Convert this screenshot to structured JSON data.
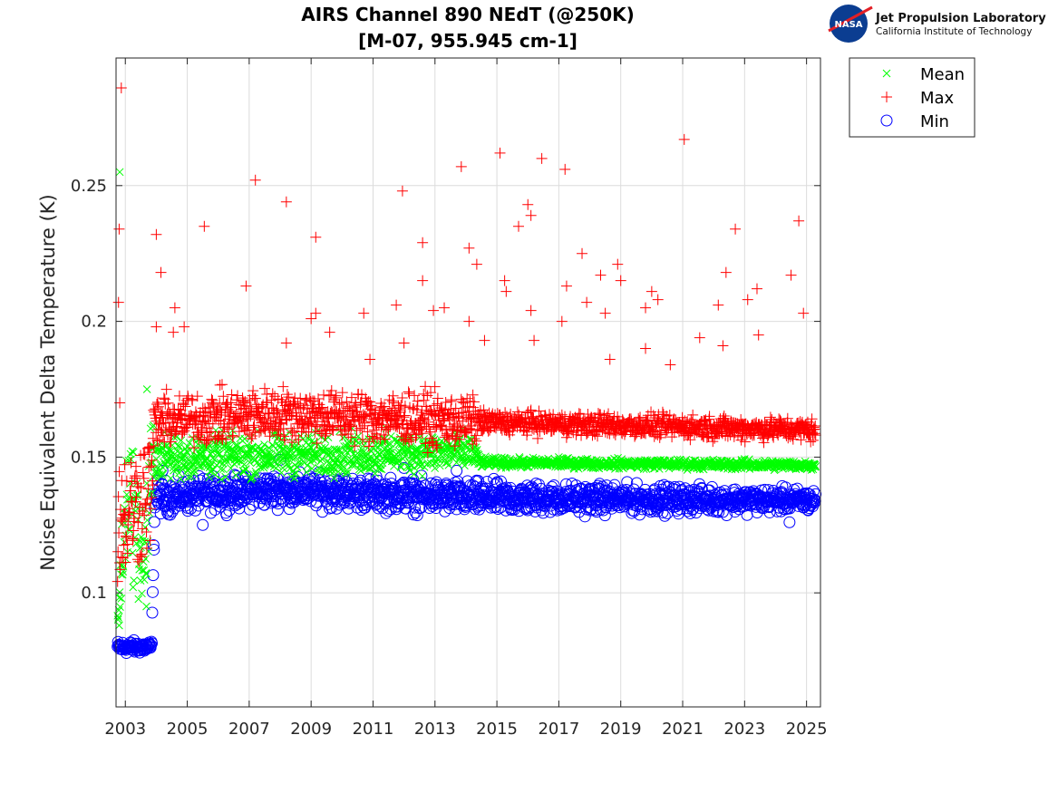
{
  "logo": {
    "title": "Jet Propulsion Laboratory",
    "subtitle": "California Institute of Technology",
    "badge": "NASA"
  },
  "chart_data": {
    "type": "scatter",
    "title": [
      "AIRS Channel 890 NEdT (@250K)",
      "[M-07, 955.945 cm-1]"
    ],
    "xlabel": "",
    "ylabel": "Noise Equivalent Delta Temperature (K)",
    "xlim": [
      2002.7,
      2025.45
    ],
    "ylim": [
      0.058,
      0.297
    ],
    "x_ticks": [
      2003,
      2005,
      2007,
      2009,
      2011,
      2013,
      2015,
      2017,
      2019,
      2021,
      2023,
      2025
    ],
    "y_ticks": [
      0.1,
      0.15,
      0.2,
      0.25
    ],
    "y_tick_labels": [
      "0.1",
      "0.15",
      "0.2",
      "0.25"
    ],
    "grid": true,
    "legend_position": "outside top-right",
    "series": [
      {
        "name": "Mean",
        "marker": "x",
        "color": "#00ff00",
        "baseline": [
          [
            2002.75,
            0.09
          ],
          [
            2003.1,
            0.14
          ],
          [
            2003.6,
            0.11
          ],
          [
            2003.9,
            0.15
          ],
          [
            2014.2,
            0.152
          ],
          [
            2014.5,
            0.148
          ],
          [
            2025.3,
            0.147
          ]
        ],
        "spread": [
          [
            2002.75,
            0.004
          ],
          [
            2003.0,
            0.02
          ],
          [
            2003.85,
            0.02
          ],
          [
            2003.95,
            0.007
          ],
          [
            2014.2,
            0.006
          ],
          [
            2014.5,
            0.0015
          ],
          [
            2025.3,
            0.0015
          ]
        ],
        "outliers": [
          [
            2002.82,
            0.255
          ],
          [
            2003.7,
            0.175
          ],
          [
            2002.8,
            0.088
          ],
          [
            2003.68,
            0.095
          ],
          [
            2017.0,
            0.15
          ],
          [
            2022.9,
            0.149
          ]
        ]
      },
      {
        "name": "Max",
        "marker": "+",
        "color": "#ff0000",
        "baseline": [
          [
            2002.75,
            0.125
          ],
          [
            2003.85,
            0.14
          ],
          [
            2003.95,
            0.163
          ],
          [
            2008.0,
            0.166
          ],
          [
            2014.2,
            0.163
          ],
          [
            2025.3,
            0.16
          ]
        ],
        "spread": [
          [
            2002.75,
            0.02
          ],
          [
            2003.85,
            0.02
          ],
          [
            2003.95,
            0.008
          ],
          [
            2014.2,
            0.008
          ],
          [
            2014.5,
            0.0035
          ],
          [
            2025.3,
            0.0035
          ]
        ],
        "outliers": [
          [
            2002.87,
            0.286
          ],
          [
            2002.8,
            0.234
          ],
          [
            2002.78,
            0.207
          ],
          [
            2002.82,
            0.17
          ],
          [
            2004.0,
            0.232
          ],
          [
            2004.15,
            0.218
          ],
          [
            2004.0,
            0.198
          ],
          [
            2004.6,
            0.205
          ],
          [
            2004.55,
            0.196
          ],
          [
            2004.9,
            0.198
          ],
          [
            2005.55,
            0.235
          ],
          [
            2007.2,
            0.252
          ],
          [
            2008.2,
            0.244
          ],
          [
            2006.9,
            0.213
          ],
          [
            2009.15,
            0.231
          ],
          [
            2009.0,
            0.201
          ],
          [
            2009.15,
            0.203
          ],
          [
            2009.6,
            0.196
          ],
          [
            2010.7,
            0.203
          ],
          [
            2011.95,
            0.248
          ],
          [
            2011.75,
            0.206
          ],
          [
            2012.6,
            0.229
          ],
          [
            2012.6,
            0.215
          ],
          [
            2012.0,
            0.192
          ],
          [
            2012.95,
            0.204
          ],
          [
            2013.3,
            0.205
          ],
          [
            2013.85,
            0.257
          ],
          [
            2014.1,
            0.227
          ],
          [
            2014.35,
            0.221
          ],
          [
            2014.1,
            0.2
          ],
          [
            2014.6,
            0.193
          ],
          [
            2015.1,
            0.262
          ],
          [
            2015.25,
            0.215
          ],
          [
            2015.3,
            0.211
          ],
          [
            2015.7,
            0.235
          ],
          [
            2016.0,
            0.243
          ],
          [
            2016.1,
            0.239
          ],
          [
            2016.1,
            0.204
          ],
          [
            2016.45,
            0.26
          ],
          [
            2016.2,
            0.193
          ],
          [
            2017.2,
            0.256
          ],
          [
            2017.25,
            0.213
          ],
          [
            2017.1,
            0.2
          ],
          [
            2017.75,
            0.225
          ],
          [
            2017.9,
            0.207
          ],
          [
            2018.35,
            0.217
          ],
          [
            2018.5,
            0.203
          ],
          [
            2018.9,
            0.221
          ],
          [
            2019.0,
            0.215
          ],
          [
            2019.8,
            0.205
          ],
          [
            2020.0,
            0.211
          ],
          [
            2020.2,
            0.208
          ],
          [
            2019.8,
            0.19
          ],
          [
            2021.05,
            0.267
          ],
          [
            2021.55,
            0.194
          ],
          [
            2022.15,
            0.206
          ],
          [
            2022.3,
            0.191
          ],
          [
            2022.4,
            0.218
          ],
          [
            2022.7,
            0.234
          ],
          [
            2023.1,
            0.208
          ],
          [
            2023.4,
            0.212
          ],
          [
            2023.45,
            0.195
          ],
          [
            2024.5,
            0.217
          ],
          [
            2024.75,
            0.237
          ],
          [
            2024.9,
            0.203
          ],
          [
            2020.6,
            0.184
          ],
          [
            2018.65,
            0.186
          ],
          [
            2010.9,
            0.186
          ],
          [
            2008.2,
            0.192
          ]
        ]
      },
      {
        "name": "Min",
        "marker": "o",
        "color": "#0000ff",
        "baseline": [
          [
            2002.75,
            0.08
          ],
          [
            2003.85,
            0.08
          ],
          [
            2003.95,
            0.135
          ],
          [
            2008.0,
            0.138
          ],
          [
            2014.0,
            0.135
          ],
          [
            2025.3,
            0.134
          ]
        ],
        "spread": [
          [
            2002.75,
            0.002
          ],
          [
            2003.85,
            0.002
          ],
          [
            2003.95,
            0.005
          ],
          [
            2014.0,
            0.005
          ],
          [
            2025.3,
            0.0035
          ]
        ],
        "outliers": [
          [
            2005.5,
            0.125
          ],
          [
            2024.45,
            0.126
          ],
          [
            2008.0,
            0.149
          ],
          [
            2012.0,
            0.146
          ],
          [
            2013.7,
            0.145
          ],
          [
            2004.2,
            0.145
          ]
        ]
      }
    ]
  }
}
